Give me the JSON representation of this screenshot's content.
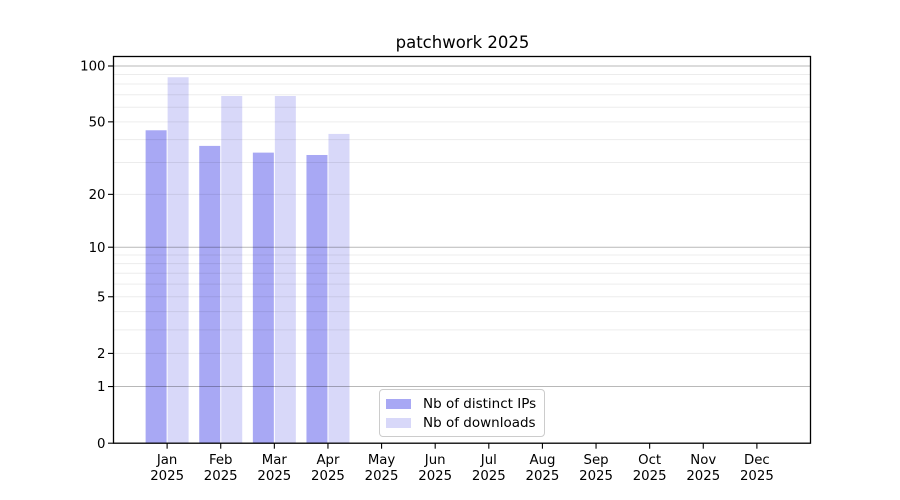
{
  "chart_data": {
    "type": "bar",
    "title": "patchwork 2025",
    "categories": [
      "Jan 2025",
      "Feb 2025",
      "Mar 2025",
      "Apr 2025",
      "May 2025",
      "Jun 2025",
      "Jul 2025",
      "Aug 2025",
      "Sep 2025",
      "Oct 2025",
      "Nov 2025",
      "Dec 2025"
    ],
    "series": [
      {
        "name": "Nb of distinct IPs",
        "color": "#a8a8f4",
        "values": [
          45,
          37,
          34,
          33,
          0,
          0,
          0,
          0,
          0,
          0,
          0,
          0
        ]
      },
      {
        "name": "Nb of downloads",
        "color": "#d8d8f9",
        "values": [
          87,
          69,
          69,
          43,
          0,
          0,
          0,
          0,
          0,
          0,
          0,
          0
        ]
      }
    ],
    "xlabel": "",
    "ylabel": "",
    "y_axis": {
      "scale": "log10(1+value)",
      "tick_labels": [
        0,
        1,
        2,
        5,
        10,
        20,
        50,
        100
      ],
      "major_gridlines": [
        1,
        10,
        100
      ],
      "minor_gridlines": [
        2,
        3,
        4,
        5,
        6,
        7,
        8,
        9,
        20,
        30,
        40,
        50,
        60,
        70,
        80,
        90
      ],
      "ylim": [
        0,
        100
      ]
    },
    "legend_position": "lower center",
    "grid": true
  },
  "colors": {
    "major_grid": "rgba(0,0,0,0.28)",
    "minor_grid": "rgba(0,0,0,0.075)",
    "spine": "#000000",
    "text": "#000000",
    "background": "#ffffff"
  }
}
